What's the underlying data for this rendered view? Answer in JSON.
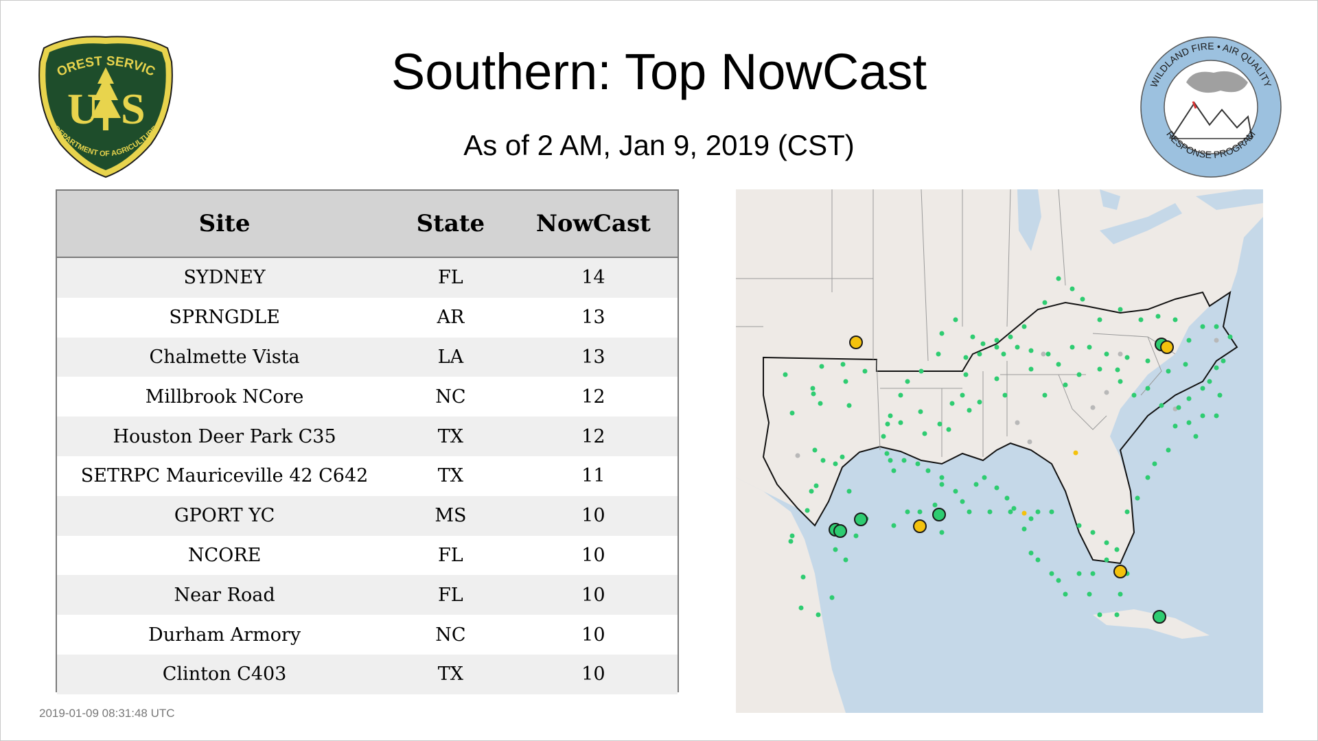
{
  "header": {
    "title": "Southern: Top NowCast",
    "subtitle": "As of  2 AM, Jan  9, 2019 (CST)"
  },
  "logos": {
    "forest_service": {
      "text_top": "FOREST SERVICE",
      "letters": "U S",
      "text_bottom": "DEPARTMENT OF AGRICULTURE",
      "color": "#1e4d2b"
    },
    "wildland_fire": {
      "text_top": "WILDLAND FIRE • AIR QUALITY",
      "text_bottom": "RESPONSE PROGRAM",
      "color": "#9cc1df"
    }
  },
  "table": {
    "columns": [
      "Site",
      "State",
      "NowCast"
    ],
    "rows": [
      {
        "site": "SYDNEY",
        "state": "FL",
        "nowcast": "14"
      },
      {
        "site": "SPRNGDLE",
        "state": "AR",
        "nowcast": "13"
      },
      {
        "site": "Chalmette Vista",
        "state": "LA",
        "nowcast": "13"
      },
      {
        "site": "Millbrook NCore",
        "state": "NC",
        "nowcast": "12"
      },
      {
        "site": "Houston Deer Park C35",
        "state": "TX",
        "nowcast": "12"
      },
      {
        "site": "SETRPC Mauriceville 42 C642",
        "state": "TX",
        "nowcast": "11"
      },
      {
        "site": "GPORT YC",
        "state": "MS",
        "nowcast": "10"
      },
      {
        "site": "NCORE",
        "state": "FL",
        "nowcast": "10"
      },
      {
        "site": "Near Road",
        "state": "FL",
        "nowcast": "10"
      },
      {
        "site": "Durham Armory",
        "state": "NC",
        "nowcast": "10"
      },
      {
        "site": "Clinton C403",
        "state": "TX",
        "nowcast": "10"
      }
    ]
  },
  "map": {
    "colors": {
      "land": "#eeeae6",
      "water": "#c5d8e8",
      "good": "#2ecc71",
      "moderate": "#f4c20d",
      "no_data": "#b8b8b8"
    }
  },
  "footer": {
    "timestamp": "2019-01-09 08:31:48 UTC"
  }
}
